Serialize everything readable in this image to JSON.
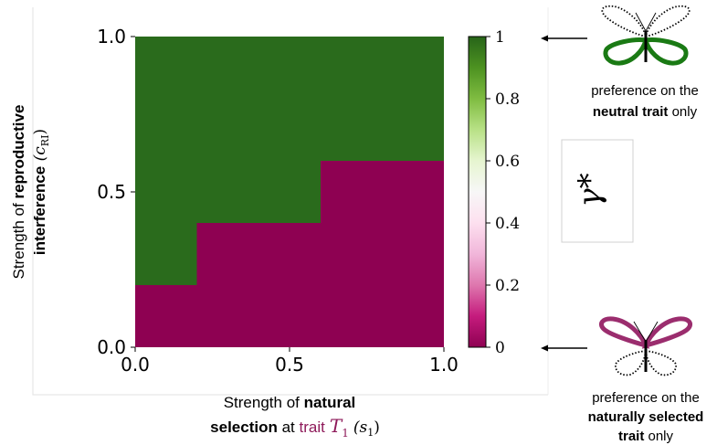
{
  "chart_data": {
    "type": "heatmap",
    "xlim": [
      0,
      1
    ],
    "ylim": [
      0,
      1
    ],
    "x_ticks": [
      "0.0",
      "0.5",
      "1.0"
    ],
    "y_ticks": [
      "0.0",
      "0.5",
      "1.0"
    ],
    "x_tick_values": [
      0,
      0.5,
      1
    ],
    "y_tick_values": [
      0,
      0.5,
      1
    ],
    "xlabel": {
      "line1_prefix": "Strength of ",
      "line1_bold": "natural",
      "line2_bold": "selection",
      "line2_mid": " at ",
      "line2_trait": "trait",
      "line2_symbol": "T",
      "line2_sub": "1",
      "line2_param": "(s",
      "line2_param_sub": "1",
      "line2_close": ")"
    },
    "ylabel": {
      "line1_prefix": "Strength of ",
      "line1_bold": "reproductive",
      "line2_bold": "interference",
      "line2_param": " (c",
      "line2_param_sub": "RI",
      "line2_close": ")"
    },
    "regions": [
      {
        "name": "gamma_equals_1",
        "value": 1,
        "color": "#2a6b1c",
        "polygon": [
          [
            0,
            0.2
          ],
          [
            0.2,
            0.2
          ],
          [
            0.2,
            0.4
          ],
          [
            0.6,
            0.4
          ],
          [
            0.6,
            0.6
          ],
          [
            1,
            0.6
          ],
          [
            1,
            1
          ],
          [
            0,
            1
          ]
        ]
      },
      {
        "name": "gamma_equals_0",
        "value": 0,
        "color": "#8e0152",
        "polygon": [
          [
            0,
            0
          ],
          [
            1,
            0
          ],
          [
            1,
            0.6
          ],
          [
            0.6,
            0.6
          ],
          [
            0.6,
            0.4
          ],
          [
            0.2,
            0.4
          ],
          [
            0.2,
            0.2
          ],
          [
            0,
            0.2
          ]
        ]
      }
    ],
    "colorbar": {
      "min": 0,
      "max": 1,
      "ticks": [
        "0",
        "0.2",
        "0.4",
        "0.6",
        "0.8",
        "1"
      ],
      "tick_values": [
        0,
        0.2,
        0.4,
        0.6,
        0.8,
        1
      ],
      "colormap": "PiYG",
      "stops": [
        "#8e0152",
        "#c51b7d",
        "#de77ae",
        "#f1b6da",
        "#fde0ef",
        "#f7f7f7",
        "#e6f5d0",
        "#b8e186",
        "#7fbc41",
        "#4d9221",
        "#276419"
      ]
    },
    "legend_symbol": "γ*"
  },
  "annotations": {
    "top": {
      "line1": "preference on the",
      "line2_bold": "neutral trait",
      "line2_rest": " only",
      "arrow_to": 1
    },
    "bottom": {
      "line1": "preference on the",
      "line2_bold": "naturally selected",
      "line3_bold": "trait",
      "line3_rest": " only",
      "arrow_to": 0
    }
  },
  "colors": {
    "trait_accent": "#8e1a5a",
    "butterfly_green": "#1a7a14",
    "butterfly_magenta": "#9b2d6e"
  },
  "icons": [
    "butterfly-green-icon",
    "butterfly-magenta-icon",
    "arrow-left-icon"
  ]
}
